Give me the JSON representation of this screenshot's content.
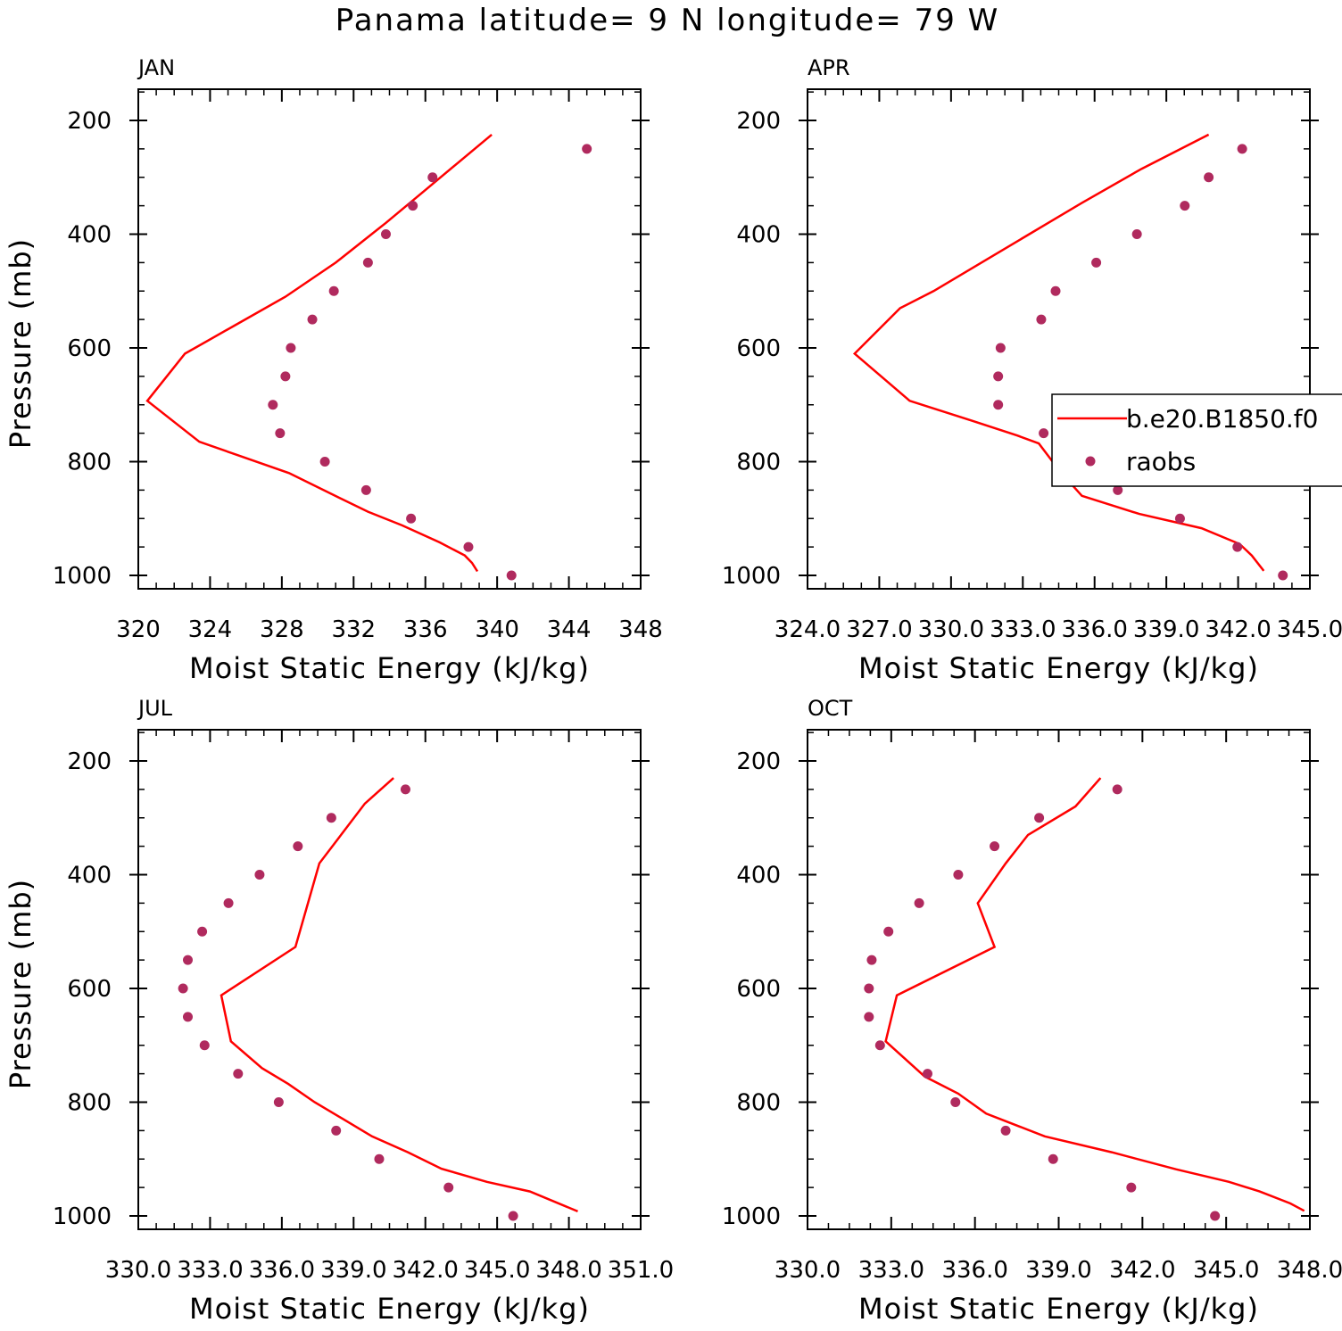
{
  "title": "Panama  latitude= 9 N longitude= 79 W",
  "legend": {
    "model_label": "b.e20.B1850.f0",
    "obs_label": "raobs"
  },
  "colors": {
    "model_line": "#ff0000",
    "obs_points": "#b02a5e"
  },
  "chart_data": [
    {
      "type": "line",
      "panel": "JAN",
      "xlabel": "Moist Static Energy (kJ/kg)",
      "ylabel": "Pressure (mb)",
      "xlim": [
        320,
        348
      ],
      "ylim": [
        200,
        1000
      ],
      "y_inverted": true,
      "xticks": [
        320,
        324,
        328,
        332,
        336,
        340,
        344,
        348
      ],
      "xtick_labels": [
        "320",
        "324",
        "328",
        "332",
        "336",
        "340",
        "344",
        "348"
      ],
      "yticks": [
        200,
        400,
        600,
        800,
        1000
      ],
      "ytick_labels": [
        "200",
        "400",
        "600",
        "800",
        "1000"
      ],
      "series": [
        {
          "name": "b.e20.B1850.f0",
          "kind": "line",
          "points": [
            [
              339.7,
              225
            ],
            [
              337.8,
              275
            ],
            [
              335.9,
              325
            ],
            [
              333.8,
              380
            ],
            [
              331.0,
              450
            ],
            [
              328.2,
              510
            ],
            [
              325.4,
              560
            ],
            [
              322.6,
              610
            ],
            [
              320.5,
              693
            ],
            [
              323.4,
              765
            ],
            [
              328.4,
              820
            ],
            [
              331.1,
              862
            ],
            [
              332.8,
              888
            ],
            [
              334.7,
              912
            ],
            [
              336.8,
              942
            ],
            [
              338.2,
              965
            ],
            [
              338.6,
              978
            ],
            [
              338.9,
              993
            ]
          ]
        },
        {
          "name": "raobs",
          "kind": "scatter",
          "points": [
            [
              345.0,
              250
            ],
            [
              336.4,
              300
            ],
            [
              335.3,
              350
            ],
            [
              333.8,
              400
            ],
            [
              332.8,
              450
            ],
            [
              330.9,
              500
            ],
            [
              329.7,
              550
            ],
            [
              328.5,
              600
            ],
            [
              328.2,
              650
            ],
            [
              327.5,
              700
            ],
            [
              327.9,
              750
            ],
            [
              330.4,
              800
            ],
            [
              332.7,
              850
            ],
            [
              335.2,
              900
            ],
            [
              338.4,
              950
            ],
            [
              340.8,
              1000
            ]
          ]
        }
      ]
    },
    {
      "type": "line",
      "panel": "APR",
      "xlabel": "Moist Static Energy (kJ/kg)",
      "ylabel": "",
      "xlim": [
        324.03,
        345.03
      ],
      "ylim": [
        200,
        1000
      ],
      "y_inverted": true,
      "xticks": [
        324.03,
        327.03,
        330.03,
        333.03,
        336.03,
        339.03,
        342.03,
        345.03
      ],
      "xtick_labels": [
        "324.0",
        "327.0",
        "330.0",
        "333.0",
        "336.0",
        "339.0",
        "342.0",
        "345.0"
      ],
      "yticks": [
        200,
        400,
        600,
        800,
        1000
      ],
      "ytick_labels": [
        "200",
        "400",
        "600",
        "800",
        "1000"
      ],
      "legend_position": "right",
      "series": [
        {
          "name": "b.e20.B1850.f0",
          "kind": "line",
          "points": [
            [
              340.8,
              225
            ],
            [
              338.0,
              285
            ],
            [
              335.5,
              345
            ],
            [
              333.3,
              400
            ],
            [
              331.5,
              445
            ],
            [
              329.3,
              500
            ],
            [
              327.9,
              530
            ],
            [
              326.0,
              610
            ],
            [
              328.3,
              693
            ],
            [
              330.9,
              728
            ],
            [
              332.8,
              754
            ],
            [
              333.7,
              768
            ],
            [
              334.6,
              818
            ],
            [
              335.5,
              860
            ],
            [
              337.9,
              892
            ],
            [
              340.5,
              917
            ],
            [
              342.1,
              945
            ],
            [
              342.6,
              965
            ],
            [
              343.1,
              992
            ]
          ]
        },
        {
          "name": "raobs",
          "kind": "scatter",
          "points": [
            [
              342.2,
              250
            ],
            [
              340.8,
              300
            ],
            [
              339.8,
              350
            ],
            [
              337.8,
              400
            ],
            [
              336.1,
              450
            ],
            [
              334.4,
              500
            ],
            [
              333.8,
              550
            ],
            [
              332.1,
              600
            ],
            [
              332.0,
              650
            ],
            [
              332.0,
              700
            ],
            [
              333.9,
              750
            ],
            [
              335.5,
              800
            ],
            [
              337.0,
              850
            ],
            [
              339.6,
              900
            ],
            [
              342.0,
              950
            ],
            [
              343.9,
              1000
            ]
          ]
        }
      ]
    },
    {
      "type": "line",
      "panel": "JUL",
      "xlabel": "Moist Static Energy (kJ/kg)",
      "ylabel": "Pressure (mb)",
      "xlim": [
        330.03,
        351.03
      ],
      "ylim": [
        200,
        1000
      ],
      "y_inverted": true,
      "xticks": [
        330.03,
        333.03,
        336.03,
        339.03,
        342.03,
        345.03,
        348.03,
        351.03
      ],
      "xtick_labels": [
        "330.0",
        "333.0",
        "336.0",
        "339.0",
        "342.0",
        "345.0",
        "348.0",
        "351.0"
      ],
      "yticks": [
        200,
        400,
        600,
        800,
        1000
      ],
      "ytick_labels": [
        "200",
        "400",
        "600",
        "800",
        "1000"
      ],
      "series": [
        {
          "name": "b.e20.B1850.f0",
          "kind": "line",
          "points": [
            [
              340.7,
              230
            ],
            [
              339.5,
              275
            ],
            [
              337.6,
              380
            ],
            [
              336.6,
              527
            ],
            [
              333.5,
              612
            ],
            [
              333.9,
              693
            ],
            [
              335.2,
              740
            ],
            [
              336.3,
              768
            ],
            [
              337.4,
              800
            ],
            [
              338.6,
              830
            ],
            [
              339.8,
              860
            ],
            [
              341.3,
              888
            ],
            [
              342.7,
              917
            ],
            [
              344.6,
              940
            ],
            [
              346.4,
              957
            ],
            [
              348.4,
              992
            ]
          ]
        },
        {
          "name": "raobs",
          "kind": "scatter",
          "points": [
            [
              341.2,
              250
            ],
            [
              338.1,
              300
            ],
            [
              336.7,
              350
            ],
            [
              335.1,
              400
            ],
            [
              333.8,
              450
            ],
            [
              332.7,
              500
            ],
            [
              332.1,
              550
            ],
            [
              331.9,
              600
            ],
            [
              332.1,
              650
            ],
            [
              332.8,
              700
            ],
            [
              334.2,
              750
            ],
            [
              335.9,
              800
            ],
            [
              338.3,
              850
            ],
            [
              340.1,
              900
            ],
            [
              343.0,
              950
            ],
            [
              345.7,
              1000
            ]
          ]
        }
      ]
    },
    {
      "type": "line",
      "panel": "OCT",
      "xlabel": "Moist Static Energy (kJ/kg)",
      "ylabel": "",
      "xlim": [
        330,
        348
      ],
      "ylim": [
        200,
        1000
      ],
      "y_inverted": true,
      "xticks": [
        330,
        333,
        336,
        339,
        342,
        345,
        348
      ],
      "xtick_labels": [
        "330.0",
        "333.0",
        "336.0",
        "339.0",
        "342.0",
        "345.0",
        "348.0"
      ],
      "yticks": [
        200,
        400,
        600,
        800,
        1000
      ],
      "ytick_labels": [
        "200",
        "400",
        "600",
        "800",
        "1000"
      ],
      "series": [
        {
          "name": "b.e20.B1850.f0",
          "kind": "line",
          "points": [
            [
              340.5,
              230
            ],
            [
              339.6,
              280
            ],
            [
              337.9,
              330
            ],
            [
              337.1,
              380
            ],
            [
              336.1,
              450
            ],
            [
              336.7,
              527
            ],
            [
              333.2,
              612
            ],
            [
              332.8,
              693
            ],
            [
              334.2,
              755
            ],
            [
              335.4,
              785
            ],
            [
              336.4,
              820
            ],
            [
              338.5,
              860
            ],
            [
              340.9,
              888
            ],
            [
              343.2,
              918
            ],
            [
              345.1,
              940
            ],
            [
              346.2,
              957
            ],
            [
              347.3,
              978
            ],
            [
              347.8,
              991
            ]
          ]
        },
        {
          "name": "raobs",
          "kind": "scatter",
          "points": [
            [
              341.1,
              250
            ],
            [
              338.3,
              300
            ],
            [
              336.7,
              350
            ],
            [
              335.4,
              400
            ],
            [
              334.0,
              450
            ],
            [
              332.9,
              500
            ],
            [
              332.3,
              550
            ],
            [
              332.2,
              600
            ],
            [
              332.2,
              650
            ],
            [
              332.6,
              700
            ],
            [
              334.3,
              750
            ],
            [
              335.3,
              800
            ],
            [
              337.1,
              850
            ],
            [
              338.8,
              900
            ],
            [
              341.6,
              950
            ],
            [
              344.6,
              1000
            ]
          ]
        }
      ]
    }
  ]
}
